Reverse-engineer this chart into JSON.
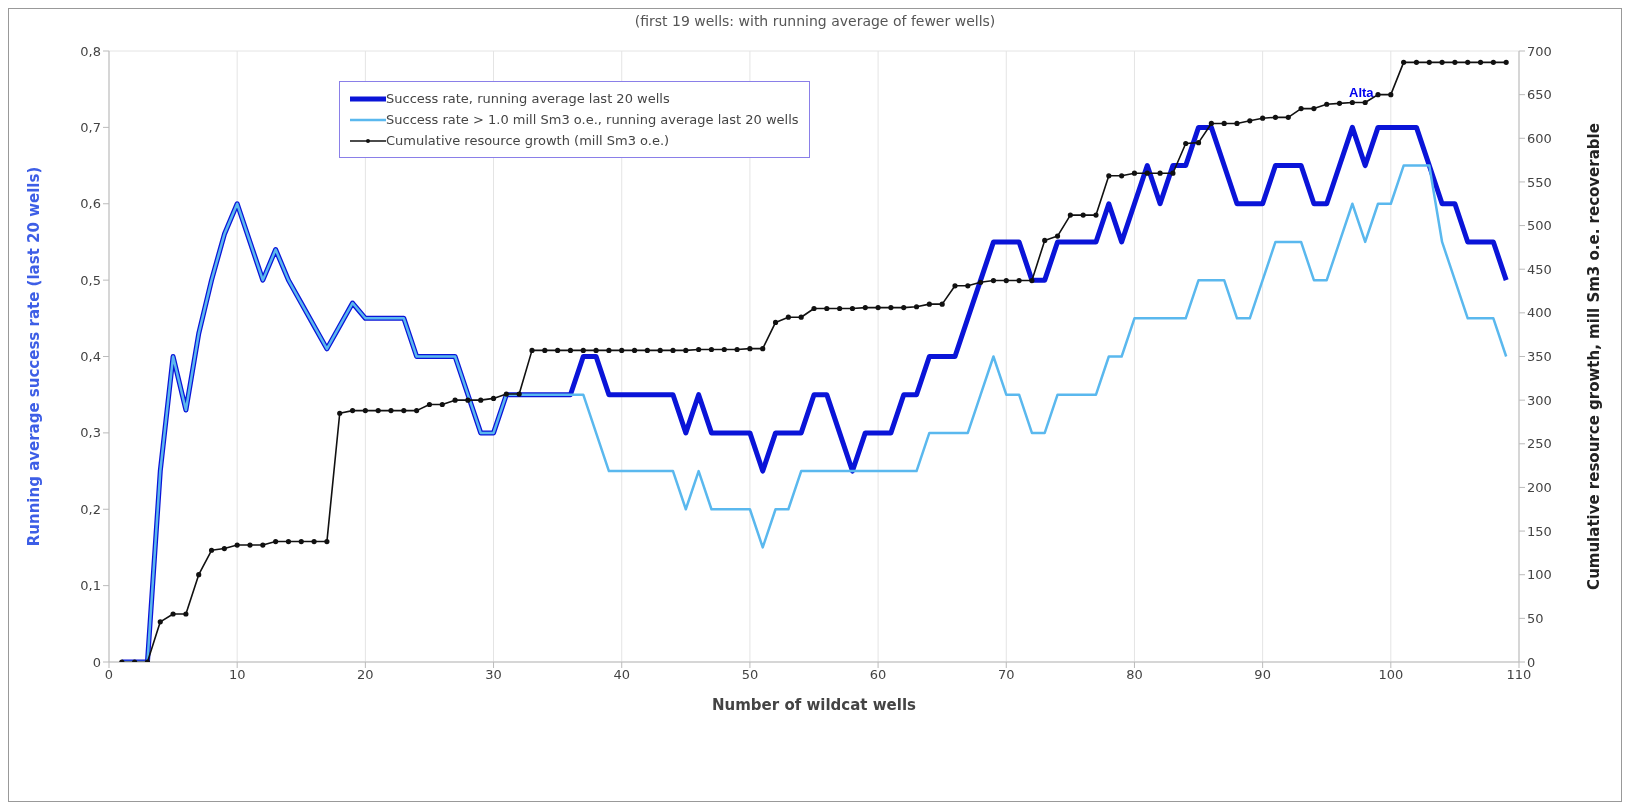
{
  "chart_data": {
    "type": "line",
    "subtitle": "(first 19 wells: with running average of fewer wells)",
    "xlabel": "Number of wildcat wells",
    "ylabel": "Running average success rate (last 20 wells)",
    "y2label": "Cumulative resource growth, mill Sm3 o.e. recoverable",
    "x": [
      1,
      2,
      3,
      4,
      5,
      6,
      7,
      8,
      9,
      10,
      11,
      12,
      13,
      14,
      15,
      16,
      17,
      18,
      19,
      20,
      21,
      22,
      23,
      24,
      25,
      26,
      27,
      28,
      29,
      30,
      31,
      32,
      33,
      34,
      35,
      36,
      37,
      38,
      39,
      40,
      41,
      42,
      43,
      44,
      45,
      46,
      47,
      48,
      49,
      50,
      51,
      52,
      53,
      54,
      55,
      56,
      57,
      58,
      59,
      60,
      61,
      62,
      63,
      64,
      65,
      66,
      67,
      68,
      69,
      70,
      71,
      72,
      73,
      74,
      75,
      76,
      77,
      78,
      79,
      80,
      81,
      82,
      83,
      84,
      85,
      86,
      87,
      88,
      89,
      90,
      91,
      92,
      93,
      94,
      95,
      96,
      97,
      98,
      99,
      100,
      101,
      102,
      103,
      104,
      105,
      106,
      107,
      108,
      109
    ],
    "series": [
      {
        "name": "Success rate, running average last 20 wells",
        "color": "#0a14d8",
        "axis": "y",
        "marker": "none",
        "values": [
          0,
          0,
          0,
          0.25,
          0.4,
          0.33,
          0.43,
          0.5,
          0.56,
          0.6,
          0.55,
          0.5,
          0.54,
          0.5,
          0.47,
          0.44,
          0.41,
          0.44,
          0.47,
          0.45,
          0.45,
          0.45,
          0.45,
          0.4,
          0.4,
          0.4,
          0.4,
          0.35,
          0.3,
          0.3,
          0.35,
          0.35,
          0.35,
          0.35,
          0.35,
          0.35,
          0.4,
          0.4,
          0.35,
          0.35,
          0.35,
          0.35,
          0.35,
          0.35,
          0.3,
          0.35,
          0.3,
          0.3,
          0.3,
          0.3,
          0.25,
          0.3,
          0.3,
          0.3,
          0.35,
          0.35,
          0.3,
          0.25,
          0.3,
          0.3,
          0.3,
          0.35,
          0.35,
          0.4,
          0.4,
          0.4,
          0.45,
          0.5,
          0.55,
          0.55,
          0.55,
          0.5,
          0.5,
          0.55,
          0.55,
          0.55,
          0.55,
          0.6,
          0.55,
          0.6,
          0.65,
          0.6,
          0.65,
          0.65,
          0.7,
          0.7,
          0.65,
          0.6,
          0.6,
          0.6,
          0.65,
          0.65,
          0.65,
          0.6,
          0.6,
          0.65,
          0.7,
          0.65,
          0.7,
          0.7,
          0.7,
          0.7,
          0.65,
          0.6,
          0.6,
          0.55,
          0.55,
          0.55,
          0.5
        ]
      },
      {
        "name": "Success rate > 1.0 mill Sm3 o.e., running average last 20 wells",
        "color": "#5ab8ee",
        "axis": "y",
        "marker": "none",
        "values": [
          0,
          0,
          0,
          0.25,
          0.4,
          0.33,
          0.43,
          0.5,
          0.56,
          0.6,
          0.55,
          0.5,
          0.54,
          0.5,
          0.47,
          0.44,
          0.41,
          0.44,
          0.47,
          0.45,
          0.45,
          0.45,
          0.45,
          0.4,
          0.4,
          0.4,
          0.4,
          0.35,
          0.3,
          0.3,
          0.35,
          0.35,
          0.35,
          0.35,
          0.35,
          0.35,
          0.35,
          0.3,
          0.25,
          0.25,
          0.25,
          0.25,
          0.25,
          0.25,
          0.2,
          0.25,
          0.2,
          0.2,
          0.2,
          0.2,
          0.15,
          0.2,
          0.2,
          0.25,
          0.25,
          0.25,
          0.25,
          0.25,
          0.25,
          0.25,
          0.25,
          0.25,
          0.25,
          0.3,
          0.3,
          0.3,
          0.3,
          0.35,
          0.4,
          0.35,
          0.35,
          0.3,
          0.3,
          0.35,
          0.35,
          0.35,
          0.35,
          0.4,
          0.4,
          0.45,
          0.45,
          0.45,
          0.45,
          0.45,
          0.5,
          0.5,
          0.5,
          0.45,
          0.45,
          0.5,
          0.55,
          0.55,
          0.55,
          0.5,
          0.5,
          0.55,
          0.6,
          0.55,
          0.6,
          0.6,
          0.65,
          0.65,
          0.65,
          0.55,
          0.5,
          0.45,
          0.45,
          0.45,
          0.4
        ]
      },
      {
        "name": "Cumulative resource growth (mill Sm3 o.e.)",
        "color": "#111111",
        "axis": "y2",
        "marker": "circle",
        "values": [
          0,
          0,
          0,
          46,
          55,
          55,
          100,
          128,
          130,
          134,
          134,
          134,
          138,
          138,
          138,
          138,
          138,
          285,
          288,
          288,
          288,
          288,
          288,
          288,
          295,
          295,
          300,
          300,
          300,
          302,
          307,
          307,
          357,
          357,
          357,
          357,
          357,
          357,
          357,
          357,
          357,
          357,
          357,
          357,
          357,
          358,
          358,
          358,
          358,
          359,
          359,
          389,
          395,
          395,
          405,
          405,
          405,
          405,
          406,
          406,
          406,
          406,
          407,
          410,
          410,
          431,
          431,
          435,
          437,
          437,
          437,
          437,
          483,
          488,
          512,
          512,
          512,
          557,
          557,
          560,
          560,
          560,
          560,
          594,
          595,
          617,
          617,
          617,
          620,
          623,
          624,
          624,
          634,
          634,
          639,
          640,
          641,
          641,
          650,
          650,
          687,
          687,
          687,
          687,
          687,
          687,
          687,
          687,
          687
        ]
      }
    ],
    "xlim": [
      0,
      110
    ],
    "xticks": [
      0,
      10,
      20,
      30,
      40,
      50,
      60,
      70,
      80,
      90,
      100,
      110
    ],
    "ylim": [
      0,
      0.8
    ],
    "yticks": [
      0,
      {
        "value": 0.1,
        "label": "0,1"
      },
      {
        "value": 0.2,
        "label": "0,2"
      },
      {
        "value": 0.3,
        "label": "0,3"
      },
      {
        "value": 0.4,
        "label": "0,4"
      },
      {
        "value": 0.5,
        "label": "0,5"
      },
      {
        "value": 0.6,
        "label": "0,6"
      },
      {
        "value": 0.7,
        "label": "0,7"
      },
      {
        "value": 0.8,
        "label": "0,8"
      }
    ],
    "y2lim": [
      0,
      700
    ],
    "y2ticks": [
      0,
      50,
      100,
      150,
      200,
      250,
      300,
      350,
      400,
      450,
      500,
      550,
      600,
      650,
      700
    ],
    "annotations": [
      "Alta"
    ],
    "grid": true,
    "legend": "top",
    "line_style": "solid"
  }
}
